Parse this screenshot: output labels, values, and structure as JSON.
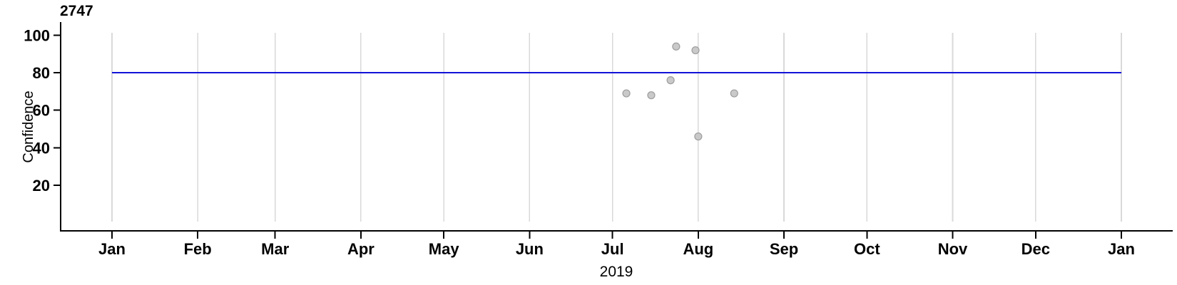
{
  "chart_data": {
    "type": "scatter",
    "title": "2747",
    "xlabel": "2019",
    "ylabel": "Confidence",
    "x_axis": {
      "start_date": "2019-01-01",
      "end_date": "2020-01-01",
      "tick_labels": [
        "Jan",
        "Feb",
        "Mar",
        "Apr",
        "May",
        "Jun",
        "Jul",
        "Aug",
        "Sep",
        "Oct",
        "Nov",
        "Dec",
        "Jan"
      ]
    },
    "y_axis": {
      "ticks": [
        20,
        40,
        60,
        80,
        100
      ],
      "range": [
        0,
        101
      ]
    },
    "grid": {
      "vertical_only": true,
      "color": "#d9d9d9"
    },
    "reference_line": {
      "value": 80,
      "color": "#1212d9",
      "start_date": "2019-01-01",
      "end_date": "2020-01-01"
    },
    "point_style": {
      "fill": "#c9c9c9",
      "stroke": "#9d9d9d",
      "radius": 5
    },
    "points": [
      {
        "date": "2019-07-06",
        "value": 69
      },
      {
        "date": "2019-07-15",
        "value": 68
      },
      {
        "date": "2019-07-22",
        "value": 76
      },
      {
        "date": "2019-07-24",
        "value": 94
      },
      {
        "date": "2019-07-31",
        "value": 92
      },
      {
        "date": "2019-08-01",
        "value": 46
      },
      {
        "date": "2019-08-14",
        "value": 69
      }
    ]
  }
}
